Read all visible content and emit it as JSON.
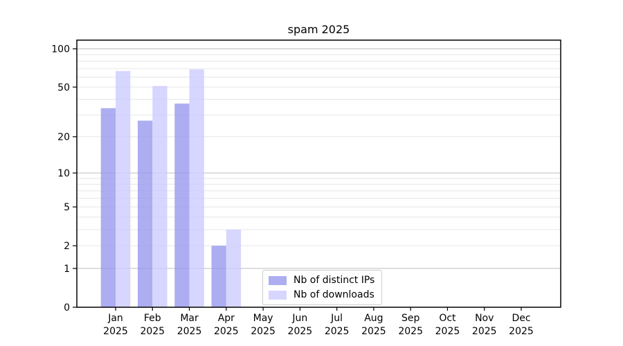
{
  "chart_data": {
    "type": "bar",
    "title": "spam 2025",
    "months": [
      "Jan",
      "Feb",
      "Mar",
      "Apr",
      "May",
      "Jun",
      "Jul",
      "Aug",
      "Sep",
      "Oct",
      "Nov",
      "Dec"
    ],
    "year": "2025",
    "series": [
      {
        "name": "Nb of distinct IPs",
        "color": "#9999ee",
        "alpha": 0.8,
        "values": [
          34,
          27,
          37,
          2,
          0,
          0,
          0,
          0,
          0,
          0,
          0,
          0
        ]
      },
      {
        "name": "Nb of downloads",
        "color": "#ccccff",
        "alpha": 0.8,
        "values": [
          67,
          51,
          69,
          3,
          0,
          0,
          0,
          0,
          0,
          0,
          0,
          0
        ]
      }
    ],
    "yscale": "log1p",
    "yticks": [
      0,
      1,
      2,
      5,
      10,
      20,
      50,
      100
    ],
    "ylim": [
      0,
      117
    ],
    "grid": true,
    "legend_position": "lower-center"
  }
}
